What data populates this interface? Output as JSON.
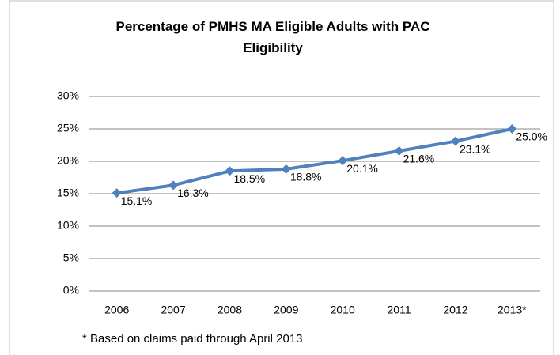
{
  "chart_data": {
    "type": "line",
    "title": "Percentage of PMHS MA Eligible Adults with PAC Eligibility",
    "footnote": "* Based on claims paid through April 2013",
    "categories": [
      "2006",
      "2007",
      "2008",
      "2009",
      "2010",
      "2011",
      "2012",
      "2013*"
    ],
    "values": [
      15.1,
      16.3,
      18.5,
      18.8,
      20.1,
      21.6,
      23.1,
      25.0
    ],
    "value_labels": [
      "15.1%",
      "16.3%",
      "18.5%",
      "18.8%",
      "20.1%",
      "21.6%",
      "23.1%",
      "25.0%"
    ],
    "color": "#4f81bd",
    "ylim": [
      0,
      30
    ],
    "yticks": [
      {
        "value": 0,
        "label": "0%"
      },
      {
        "value": 5,
        "label": "5%"
      },
      {
        "value": 10,
        "label": "10%"
      },
      {
        "value": 15,
        "label": "15%"
      },
      {
        "value": 20,
        "label": "20%"
      },
      {
        "value": 25,
        "label": "25%"
      },
      {
        "value": 30,
        "label": "30%"
      }
    ],
    "grid": true
  }
}
